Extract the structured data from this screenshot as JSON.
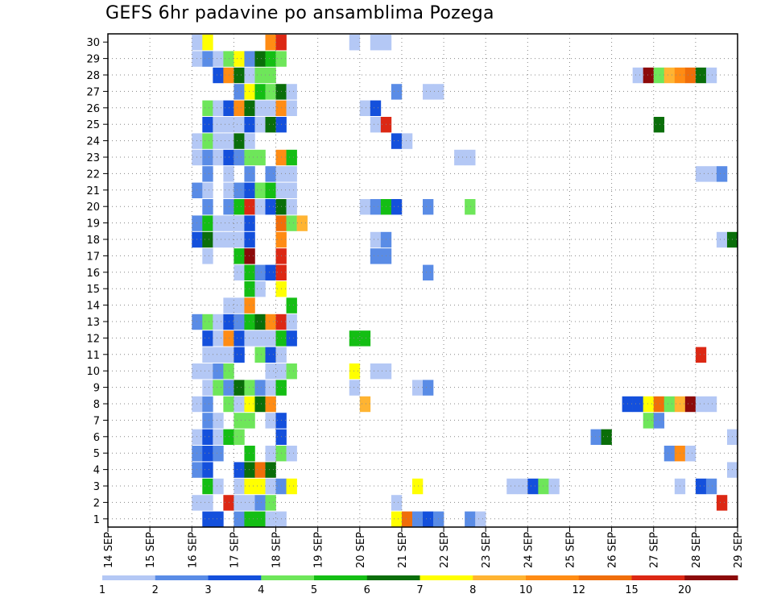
{
  "title": "GEFS 6hr padavine po ansamblima Pozega",
  "chart_data": {
    "type": "heatmap",
    "title": "GEFS 6hr padavine po ansamblima Pozega",
    "xlabel": "",
    "ylabel": "",
    "x_ticks": [
      "14 SEP",
      "15 SEP",
      "16 SEP",
      "17 SEP",
      "18 SEP",
      "19 SEP",
      "20 SEP",
      "21 SEP",
      "22 SEP",
      "23 SEP",
      "24 SEP",
      "25 SEP",
      "26 SEP",
      "27 SEP",
      "28 SEP",
      "29 SEP"
    ],
    "xlim": [
      "14 SEP",
      "29 SEP"
    ],
    "y_ticks": [
      1,
      2,
      3,
      4,
      5,
      6,
      7,
      8,
      9,
      10,
      11,
      12,
      13,
      14,
      15,
      16,
      17,
      18,
      19,
      20,
      21,
      22,
      23,
      24,
      25,
      26,
      27,
      28,
      29,
      30
    ],
    "ylim": [
      0,
      30
    ],
    "grid": true,
    "time_step": "6hr",
    "legend": {
      "position": "bottom",
      "labels": [
        "1",
        "2",
        "3",
        "4",
        "5",
        "6",
        "7",
        "8",
        "10",
        "12",
        "15",
        "20"
      ],
      "colors": [
        "#b4c8f5",
        "#5a8ce6",
        "#1450dc",
        "#6ee65a",
        "#14be14",
        "#0a6e0a",
        "#ffff00",
        "#ffb432",
        "#ff8c14",
        "#f06e0a",
        "#dc2814",
        "#8c0a0a"
      ]
    },
    "values_note": "cells: [member, day_fraction_start, precipitation class color index 0-11]",
    "cells": [
      [
        30,
        16.0,
        0
      ],
      [
        30,
        16.25,
        6
      ],
      [
        30,
        17.75,
        8
      ],
      [
        30,
        18.0,
        10
      ],
      [
        30,
        19.75,
        0
      ],
      [
        30,
        20.25,
        0
      ],
      [
        30,
        20.5,
        0
      ],
      [
        29,
        16.0,
        0
      ],
      [
        29,
        16.25,
        1
      ],
      [
        29,
        16.5,
        0
      ],
      [
        29,
        16.75,
        3
      ],
      [
        29,
        17.0,
        6
      ],
      [
        29,
        17.25,
        1
      ],
      [
        29,
        17.5,
        5
      ],
      [
        29,
        17.75,
        4
      ],
      [
        29,
        18.0,
        3
      ],
      [
        28,
        16.5,
        2
      ],
      [
        28,
        16.75,
        8
      ],
      [
        28,
        17.0,
        5
      ],
      [
        28,
        17.25,
        0
      ],
      [
        28,
        17.5,
        3
      ],
      [
        28,
        17.75,
        3
      ],
      [
        28,
        26.5,
        0
      ],
      [
        28,
        26.75,
        11
      ],
      [
        28,
        27.0,
        3
      ],
      [
        28,
        27.25,
        7
      ],
      [
        28,
        27.5,
        8
      ],
      [
        28,
        27.75,
        9
      ],
      [
        28,
        28.0,
        5
      ],
      [
        28,
        28.25,
        0
      ],
      [
        27,
        17.0,
        1
      ],
      [
        27,
        17.25,
        6
      ],
      [
        27,
        17.5,
        4
      ],
      [
        27,
        17.75,
        3
      ],
      [
        27,
        18.0,
        5
      ],
      [
        27,
        18.25,
        0
      ],
      [
        27,
        20.75,
        1
      ],
      [
        27,
        21.5,
        0
      ],
      [
        27,
        21.75,
        0
      ],
      [
        26,
        16.25,
        3
      ],
      [
        26,
        16.5,
        0
      ],
      [
        26,
        16.75,
        2
      ],
      [
        26,
        17.0,
        8
      ],
      [
        26,
        17.25,
        5
      ],
      [
        26,
        17.5,
        0
      ],
      [
        26,
        17.75,
        0
      ],
      [
        26,
        18.0,
        8
      ],
      [
        26,
        18.25,
        0
      ],
      [
        26,
        20.0,
        0
      ],
      [
        26,
        20.25,
        2
      ],
      [
        25,
        16.25,
        2
      ],
      [
        25,
        16.5,
        0
      ],
      [
        25,
        16.75,
        0
      ],
      [
        25,
        17.0,
        0
      ],
      [
        25,
        17.25,
        2
      ],
      [
        25,
        17.5,
        0
      ],
      [
        25,
        17.75,
        5
      ],
      [
        25,
        18.0,
        2
      ],
      [
        25,
        20.25,
        0
      ],
      [
        25,
        20.5,
        10
      ],
      [
        25,
        27.0,
        5
      ],
      [
        24,
        16.0,
        0
      ],
      [
        24,
        16.25,
        3
      ],
      [
        24,
        16.5,
        0
      ],
      [
        24,
        16.75,
        0
      ],
      [
        24,
        17.0,
        5
      ],
      [
        24,
        17.25,
        0
      ],
      [
        24,
        20.75,
        2
      ],
      [
        24,
        21.0,
        0
      ],
      [
        23,
        16.0,
        0
      ],
      [
        23,
        16.25,
        1
      ],
      [
        23,
        16.5,
        0
      ],
      [
        23,
        16.75,
        2
      ],
      [
        23,
        17.0,
        1
      ],
      [
        23,
        17.25,
        3
      ],
      [
        23,
        17.5,
        3
      ],
      [
        23,
        18.0,
        8
      ],
      [
        23,
        18.25,
        4
      ],
      [
        23,
        22.25,
        0
      ],
      [
        23,
        22.5,
        0
      ],
      [
        22,
        16.25,
        1
      ],
      [
        22,
        16.75,
        0
      ],
      [
        22,
        17.25,
        1
      ],
      [
        22,
        17.75,
        1
      ],
      [
        22,
        18.0,
        0
      ],
      [
        22,
        18.25,
        0
      ],
      [
        22,
        28.0,
        0
      ],
      [
        22,
        28.25,
        0
      ],
      [
        22,
        28.5,
        1
      ],
      [
        21,
        16.0,
        1
      ],
      [
        21,
        16.25,
        0
      ],
      [
        21,
        16.75,
        0
      ],
      [
        21,
        17.0,
        1
      ],
      [
        21,
        17.25,
        2
      ],
      [
        21,
        17.5,
        3
      ],
      [
        21,
        17.75,
        4
      ],
      [
        21,
        18.0,
        0
      ],
      [
        21,
        18.25,
        0
      ],
      [
        20,
        16.25,
        1
      ],
      [
        20,
        16.75,
        1
      ],
      [
        20,
        17.0,
        4
      ],
      [
        20,
        17.25,
        10
      ],
      [
        20,
        17.5,
        0
      ],
      [
        20,
        17.75,
        2
      ],
      [
        20,
        18.0,
        5
      ],
      [
        20,
        18.25,
        0
      ],
      [
        20,
        20.0,
        0
      ],
      [
        20,
        20.25,
        1
      ],
      [
        20,
        20.5,
        4
      ],
      [
        20,
        20.75,
        2
      ],
      [
        20,
        21.5,
        1
      ],
      [
        20,
        22.5,
        3
      ],
      [
        19,
        16.0,
        1
      ],
      [
        19,
        16.25,
        4
      ],
      [
        19,
        16.5,
        0
      ],
      [
        19,
        16.75,
        0
      ],
      [
        19,
        17.0,
        0
      ],
      [
        19,
        17.25,
        2
      ],
      [
        19,
        18.0,
        9
      ],
      [
        19,
        18.25,
        3
      ],
      [
        19,
        18.5,
        7
      ],
      [
        18,
        16.0,
        2
      ],
      [
        18,
        16.25,
        5
      ],
      [
        18,
        16.5,
        0
      ],
      [
        18,
        16.75,
        0
      ],
      [
        18,
        17.0,
        0
      ],
      [
        18,
        17.25,
        2
      ],
      [
        18,
        18.0,
        8
      ],
      [
        18,
        20.25,
        0
      ],
      [
        18,
        20.5,
        1
      ],
      [
        18,
        28.5,
        0
      ],
      [
        18,
        28.75,
        5
      ],
      [
        17,
        16.25,
        0
      ],
      [
        17,
        17.0,
        4
      ],
      [
        17,
        17.25,
        11
      ],
      [
        17,
        18.0,
        10
      ],
      [
        17,
        20.25,
        1
      ],
      [
        17,
        20.5,
        1
      ],
      [
        16,
        17.0,
        0
      ],
      [
        16,
        17.25,
        4
      ],
      [
        16,
        17.5,
        1
      ],
      [
        16,
        17.75,
        2
      ],
      [
        16,
        18.0,
        10
      ],
      [
        16,
        21.5,
        1
      ],
      [
        15,
        17.25,
        4
      ],
      [
        15,
        17.5,
        0
      ],
      [
        15,
        18.0,
        6
      ],
      [
        14,
        16.75,
        0
      ],
      [
        14,
        17.0,
        0
      ],
      [
        14,
        17.25,
        8
      ],
      [
        14,
        18.25,
        4
      ],
      [
        13,
        16.0,
        1
      ],
      [
        13,
        16.25,
        3
      ],
      [
        13,
        16.5,
        0
      ],
      [
        13,
        16.75,
        2
      ],
      [
        13,
        17.0,
        1
      ],
      [
        13,
        17.25,
        4
      ],
      [
        13,
        17.5,
        5
      ],
      [
        13,
        17.75,
        8
      ],
      [
        13,
        18.0,
        10
      ],
      [
        13,
        18.25,
        0
      ],
      [
        12,
        16.25,
        2
      ],
      [
        12,
        16.5,
        0
      ],
      [
        12,
        16.75,
        8
      ],
      [
        12,
        17.0,
        2
      ],
      [
        12,
        17.25,
        0
      ],
      [
        12,
        17.5,
        0
      ],
      [
        12,
        17.75,
        0
      ],
      [
        12,
        18.0,
        4
      ],
      [
        12,
        18.25,
        2
      ],
      [
        12,
        19.75,
        4
      ],
      [
        12,
        20.0,
        4
      ],
      [
        11,
        16.25,
        0
      ],
      [
        11,
        16.5,
        0
      ],
      [
        11,
        16.75,
        0
      ],
      [
        11,
        17.0,
        2
      ],
      [
        11,
        17.5,
        3
      ],
      [
        11,
        17.75,
        2
      ],
      [
        11,
        18.0,
        0
      ],
      [
        11,
        28.0,
        10
      ],
      [
        10,
        16.0,
        0
      ],
      [
        10,
        16.25,
        0
      ],
      [
        10,
        16.5,
        1
      ],
      [
        10,
        16.75,
        3
      ],
      [
        10,
        17.75,
        0
      ],
      [
        10,
        18.0,
        0
      ],
      [
        10,
        18.25,
        3
      ],
      [
        10,
        19.75,
        6
      ],
      [
        10,
        20.25,
        0
      ],
      [
        10,
        20.5,
        0
      ],
      [
        9,
        16.25,
        0
      ],
      [
        9,
        16.5,
        3
      ],
      [
        9,
        16.75,
        1
      ],
      [
        9,
        17.0,
        5
      ],
      [
        9,
        17.25,
        3
      ],
      [
        9,
        17.5,
        1
      ],
      [
        9,
        17.75,
        0
      ],
      [
        9,
        18.0,
        4
      ],
      [
        9,
        19.75,
        0
      ],
      [
        9,
        21.25,
        0
      ],
      [
        9,
        21.5,
        1
      ],
      [
        8,
        16.0,
        0
      ],
      [
        8,
        16.25,
        1
      ],
      [
        8,
        16.75,
        3
      ],
      [
        8,
        17.0,
        0
      ],
      [
        8,
        17.25,
        6
      ],
      [
        8,
        17.5,
        5
      ],
      [
        8,
        17.75,
        8
      ],
      [
        8,
        20.0,
        7
      ],
      [
        8,
        26.25,
        2
      ],
      [
        8,
        26.5,
        2
      ],
      [
        8,
        26.75,
        6
      ],
      [
        8,
        27.0,
        9
      ],
      [
        8,
        27.25,
        3
      ],
      [
        8,
        27.5,
        7
      ],
      [
        8,
        27.75,
        11
      ],
      [
        8,
        28.0,
        0
      ],
      [
        8,
        28.25,
        0
      ],
      [
        7,
        16.25,
        1
      ],
      [
        7,
        16.5,
        0
      ],
      [
        7,
        17.0,
        3
      ],
      [
        7,
        17.25,
        3
      ],
      [
        7,
        17.75,
        0
      ],
      [
        7,
        18.0,
        2
      ],
      [
        7,
        26.75,
        3
      ],
      [
        7,
        27.0,
        1
      ],
      [
        6,
        16.0,
        0
      ],
      [
        6,
        16.25,
        2
      ],
      [
        6,
        16.5,
        0
      ],
      [
        6,
        16.75,
        4
      ],
      [
        6,
        17.0,
        3
      ],
      [
        6,
        18.0,
        2
      ],
      [
        6,
        25.5,
        1
      ],
      [
        6,
        25.75,
        5
      ],
      [
        6,
        28.75,
        0
      ],
      [
        5,
        16.0,
        1
      ],
      [
        5,
        16.25,
        2
      ],
      [
        5,
        16.5,
        1
      ],
      [
        5,
        17.25,
        4
      ],
      [
        5,
        17.75,
        0
      ],
      [
        5,
        18.0,
        3
      ],
      [
        5,
        18.25,
        0
      ],
      [
        5,
        27.25,
        1
      ],
      [
        5,
        27.5,
        8
      ],
      [
        5,
        27.75,
        0
      ],
      [
        4,
        16.0,
        1
      ],
      [
        4,
        16.25,
        2
      ],
      [
        4,
        17.0,
        2
      ],
      [
        4,
        17.25,
        5
      ],
      [
        4,
        17.5,
        9
      ],
      [
        4,
        17.75,
        5
      ],
      [
        4,
        28.75,
        0
      ],
      [
        3,
        16.25,
        4
      ],
      [
        3,
        16.5,
        0
      ],
      [
        3,
        17.0,
        0
      ],
      [
        3,
        17.25,
        6
      ],
      [
        3,
        17.5,
        6
      ],
      [
        3,
        17.75,
        0
      ],
      [
        3,
        18.0,
        1
      ],
      [
        3,
        18.25,
        6
      ],
      [
        3,
        21.25,
        6
      ],
      [
        3,
        23.5,
        0
      ],
      [
        3,
        23.75,
        0
      ],
      [
        3,
        24.0,
        2
      ],
      [
        3,
        24.25,
        3
      ],
      [
        3,
        24.5,
        0
      ],
      [
        3,
        27.5,
        0
      ],
      [
        3,
        28.0,
        2
      ],
      [
        3,
        28.25,
        1
      ],
      [
        2,
        16.0,
        0
      ],
      [
        2,
        16.25,
        0
      ],
      [
        2,
        16.75,
        10
      ],
      [
        2,
        17.0,
        0
      ],
      [
        2,
        17.25,
        0
      ],
      [
        2,
        17.5,
        1
      ],
      [
        2,
        17.75,
        3
      ],
      [
        2,
        20.75,
        0
      ],
      [
        2,
        28.5,
        10
      ],
      [
        1,
        16.25,
        2
      ],
      [
        1,
        16.5,
        2
      ],
      [
        1,
        17.0,
        1
      ],
      [
        1,
        17.25,
        4
      ],
      [
        1,
        17.5,
        4
      ],
      [
        1,
        17.75,
        0
      ],
      [
        1,
        18.0,
        0
      ],
      [
        1,
        20.75,
        6
      ],
      [
        1,
        21.0,
        9
      ],
      [
        1,
        21.25,
        1
      ],
      [
        1,
        21.5,
        2
      ],
      [
        1,
        21.75,
        1
      ],
      [
        1,
        22.5,
        1
      ],
      [
        1,
        22.75,
        0
      ]
    ]
  }
}
